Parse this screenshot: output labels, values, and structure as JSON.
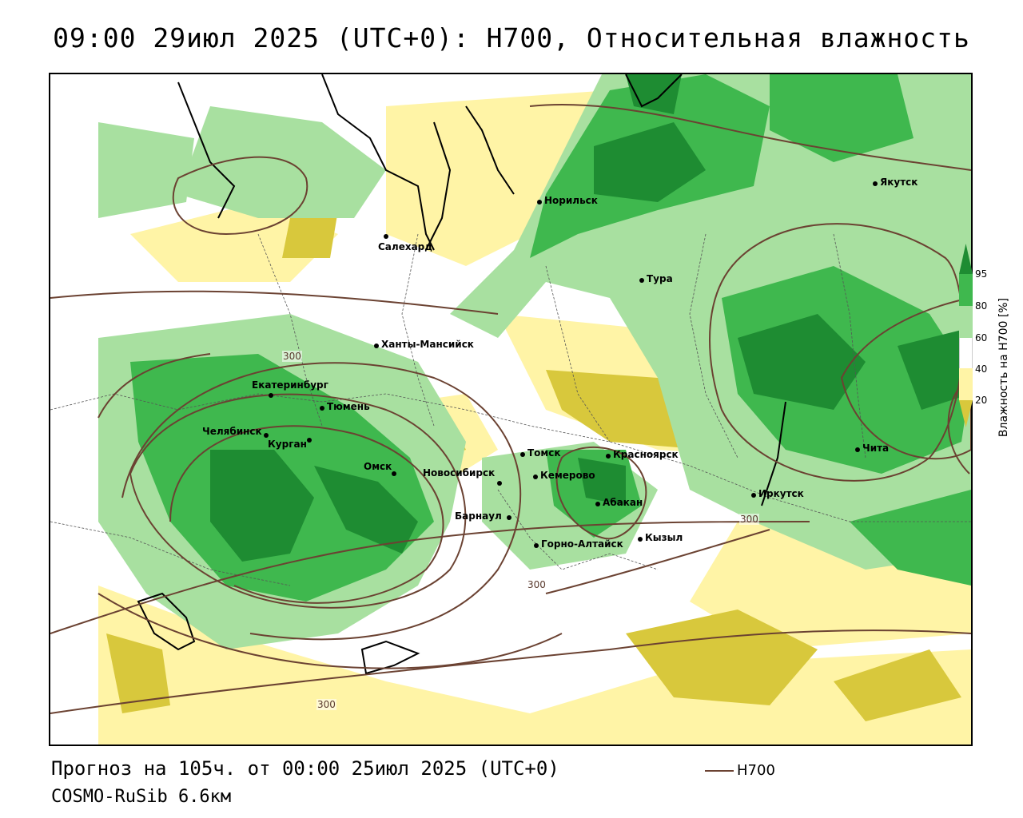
{
  "title": "09:00 29июл 2025 (UTC+0): H700, Относительная влажность",
  "forecast_line": "Прогноз на 105ч. от 00:00 25июл 2025 (UTC+0)",
  "model_line": "COSMO-RuSib 6.6км",
  "contour_key": {
    "label": "H700",
    "color": "#6b4232"
  },
  "colorbar": {
    "title": "Влажность на H700 [%]",
    "ticks": [
      "95",
      "80",
      "60",
      "40",
      "20"
    ],
    "colors": {
      "very_moist": "#1e8c32",
      "moist": "#3fb84e",
      "medium": "#a8e0a0",
      "neutral": "#ffffff",
      "dry": "#fff4a6",
      "very_dry": "#d8c83c"
    }
  },
  "contour_labels": [
    "300",
    "300",
    "300",
    "300"
  ],
  "cities": [
    {
      "name": "Салехард"
    },
    {
      "name": "Норильск"
    },
    {
      "name": "Якутск"
    },
    {
      "name": "Тура"
    },
    {
      "name": "Ханты-Мансийск"
    },
    {
      "name": "Екатеринбург"
    },
    {
      "name": "Тюмень"
    },
    {
      "name": "Челябинск"
    },
    {
      "name": "Курган"
    },
    {
      "name": "Омск"
    },
    {
      "name": "Новосибирск"
    },
    {
      "name": "Томск"
    },
    {
      "name": "Кемерово"
    },
    {
      "name": "Красноярск"
    },
    {
      "name": "Абакан"
    },
    {
      "name": "Барнаул"
    },
    {
      "name": "Горно-Алтайск"
    },
    {
      "name": "Кызыл"
    },
    {
      "name": "Иркутск"
    },
    {
      "name": "Чита"
    }
  ]
}
